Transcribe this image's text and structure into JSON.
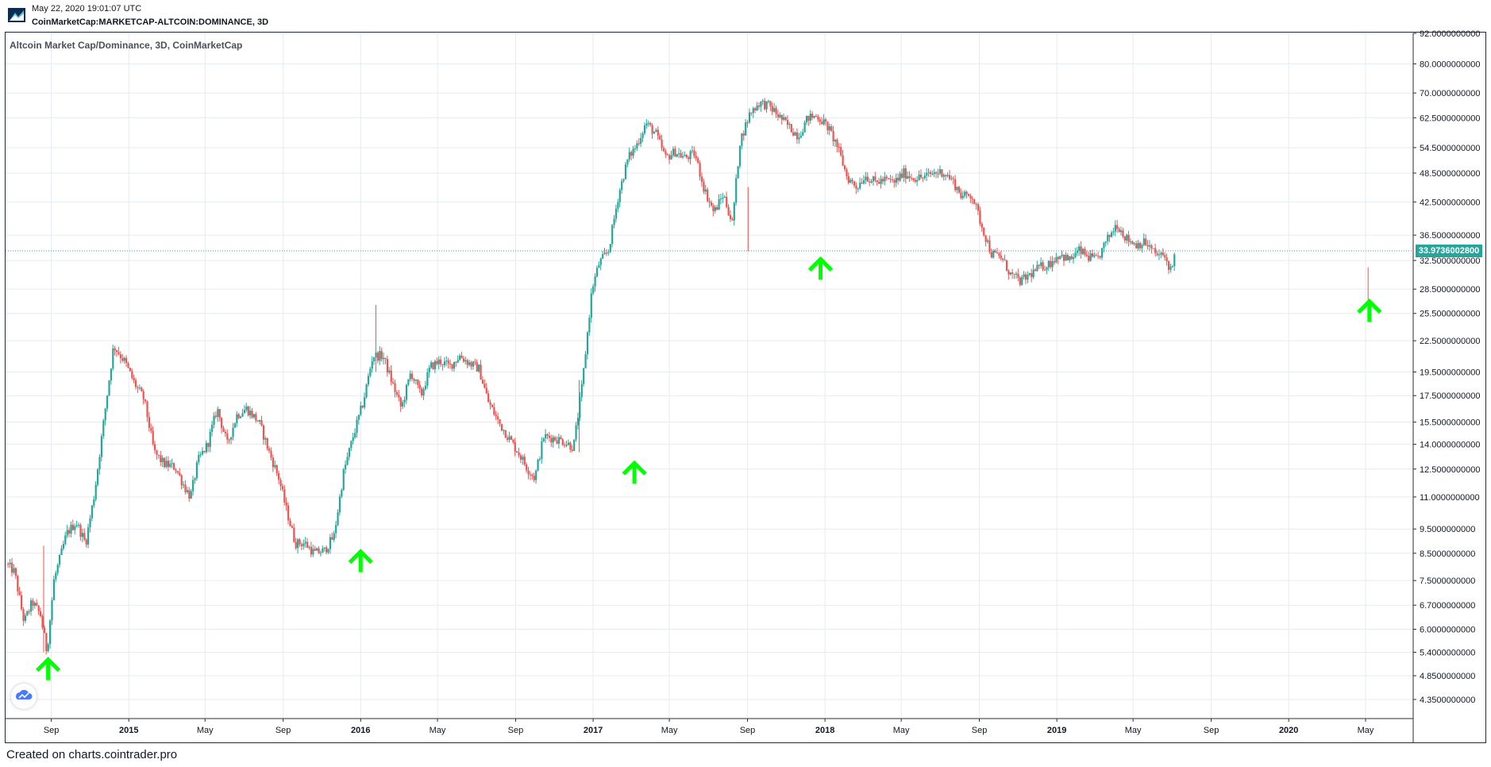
{
  "header": {
    "datetime": "May 22, 2020 19:01:07 UTC",
    "symbol": "CoinMarketCap:MARKETCAP-ALTCOIN:DOMINANCE, 3D"
  },
  "footer": {
    "text": "Created on charts.cointrader.pro"
  },
  "colors": {
    "up": "#26a69a",
    "down": "#ef5350",
    "arrow": "#00ff00",
    "grid": "#e6ebf1",
    "axis_text": "#131722",
    "price_line": "#26a69a"
  },
  "icons": {
    "logo": "cointrader-logo-icon",
    "brand": "tradingview-cloud-icon",
    "marker": "up-arrow-icon"
  },
  "chart_data": {
    "type": "candlestick",
    "title": "Altcoin Market Cap/Dominance, 3D, CoinMarketCap",
    "y_scale": "log",
    "ylim": [
      4.0,
      92.0
    ],
    "xlim": [
      "2014-06-21",
      "2020-07-15"
    ],
    "last_price_label": "33.9736002800",
    "last_price": 33.9736,
    "y_ticks": [
      {
        "label": "92.0000000000",
        "v": 92.0
      },
      {
        "label": "80.0000000000",
        "v": 80.0
      },
      {
        "label": "70.0000000000",
        "v": 70.0
      },
      {
        "label": "62.5000000000",
        "v": 62.5
      },
      {
        "label": "54.5000000000",
        "v": 54.5
      },
      {
        "label": "48.5000000000",
        "v": 48.5
      },
      {
        "label": "42.5000000000",
        "v": 42.5
      },
      {
        "label": "36.5000000000",
        "v": 36.5
      },
      {
        "label": "32.5000000000",
        "v": 32.5
      },
      {
        "label": "28.5000000000",
        "v": 28.5
      },
      {
        "label": "25.5000000000",
        "v": 25.5
      },
      {
        "label": "22.5000000000",
        "v": 22.5
      },
      {
        "label": "19.5000000000",
        "v": 19.5
      },
      {
        "label": "17.5000000000",
        "v": 17.5
      },
      {
        "label": "15.5000000000",
        "v": 15.5
      },
      {
        "label": "14.0000000000",
        "v": 14.0
      },
      {
        "label": "12.5000000000",
        "v": 12.5
      },
      {
        "label": "11.0000000000",
        "v": 11.0
      },
      {
        "label": "9.5000000000",
        "v": 9.5
      },
      {
        "label": "8.5000000000",
        "v": 8.5
      },
      {
        "label": "7.5000000000",
        "v": 7.5
      },
      {
        "label": "6.7000000000",
        "v": 6.7
      },
      {
        "label": "6.0000000000",
        "v": 6.0
      },
      {
        "label": "5.4000000000",
        "v": 5.4
      },
      {
        "label": "4.8500000000",
        "v": 4.85
      },
      {
        "label": "4.3500000000",
        "v": 4.35
      }
    ],
    "x_ticks": [
      {
        "label": "Sep",
        "date": "2014-09-01",
        "bold": false
      },
      {
        "label": "2015",
        "date": "2015-01-01",
        "bold": true
      },
      {
        "label": "May",
        "date": "2015-05-01",
        "bold": false
      },
      {
        "label": "Sep",
        "date": "2015-09-01",
        "bold": false
      },
      {
        "label": "2016",
        "date": "2016-01-01",
        "bold": true
      },
      {
        "label": "May",
        "date": "2016-05-01",
        "bold": false
      },
      {
        "label": "Sep",
        "date": "2016-09-01",
        "bold": false
      },
      {
        "label": "2017",
        "date": "2017-01-01",
        "bold": true
      },
      {
        "label": "May",
        "date": "2017-05-01",
        "bold": false
      },
      {
        "label": "Sep",
        "date": "2017-09-01",
        "bold": false
      },
      {
        "label": "2018",
        "date": "2018-01-01",
        "bold": true
      },
      {
        "label": "May",
        "date": "2018-05-01",
        "bold": false
      },
      {
        "label": "Sep",
        "date": "2018-09-01",
        "bold": false
      },
      {
        "label": "2019",
        "date": "2019-01-01",
        "bold": true
      },
      {
        "label": "May",
        "date": "2019-05-01",
        "bold": false
      },
      {
        "label": "Sep",
        "date": "2019-09-01",
        "bold": false
      },
      {
        "label": "2020",
        "date": "2020-01-01",
        "bold": true
      },
      {
        "label": "May",
        "date": "2020-05-01",
        "bold": false
      }
    ],
    "price_path": [
      [
        "2014-06-22",
        8.1
      ],
      [
        "2014-07-05",
        7.8
      ],
      [
        "2014-07-20",
        6.2
      ],
      [
        "2014-08-02",
        6.8
      ],
      [
        "2014-08-15",
        6.4
      ],
      [
        "2014-08-25",
        5.4
      ],
      [
        "2014-09-05",
        7.5
      ],
      [
        "2014-09-25",
        9.3
      ],
      [
        "2014-10-10",
        9.8
      ],
      [
        "2014-10-25",
        8.9
      ],
      [
        "2014-11-08",
        11.2
      ],
      [
        "2014-11-25",
        16.5
      ],
      [
        "2014-12-08",
        22.0
      ],
      [
        "2014-12-25",
        20.5
      ],
      [
        "2015-01-10",
        18.5
      ],
      [
        "2015-01-25",
        17.2
      ],
      [
        "2015-02-10",
        13.5
      ],
      [
        "2015-02-25",
        12.8
      ],
      [
        "2015-03-15",
        12.6
      ],
      [
        "2015-03-30",
        11.5
      ],
      [
        "2015-04-08",
        11.0
      ],
      [
        "2015-04-20",
        13.0
      ],
      [
        "2015-05-05",
        14.0
      ],
      [
        "2015-05-20",
        16.5
      ],
      [
        "2015-06-05",
        14.0
      ],
      [
        "2015-06-20",
        16.0
      ],
      [
        "2015-07-05",
        16.5
      ],
      [
        "2015-07-25",
        15.5
      ],
      [
        "2015-08-10",
        13.5
      ],
      [
        "2015-08-25",
        12.0
      ],
      [
        "2015-09-05",
        10.5
      ],
      [
        "2015-09-20",
        8.9
      ],
      [
        "2015-10-05",
        8.9
      ],
      [
        "2015-10-20",
        8.5
      ],
      [
        "2015-11-05",
        8.6
      ],
      [
        "2015-11-20",
        9.2
      ],
      [
        "2015-12-05",
        12.3
      ],
      [
        "2015-12-20",
        14.5
      ],
      [
        "2016-01-05",
        17.0
      ],
      [
        "2016-01-20",
        21.0
      ],
      [
        "2016-02-05",
        21.0
      ],
      [
        "2016-02-20",
        18.5
      ],
      [
        "2016-03-05",
        16.5
      ],
      [
        "2016-03-20",
        19.5
      ],
      [
        "2016-04-05",
        17.5
      ],
      [
        "2016-04-20",
        20.0
      ],
      [
        "2016-05-05",
        20.5
      ],
      [
        "2016-05-20",
        20.0
      ],
      [
        "2016-06-05",
        21.0
      ],
      [
        "2016-06-20",
        20.3
      ],
      [
        "2016-07-05",
        19.8
      ],
      [
        "2016-07-20",
        17.0
      ],
      [
        "2016-08-05",
        15.5
      ],
      [
        "2016-08-20",
        14.5
      ],
      [
        "2016-09-05",
        13.5
      ],
      [
        "2016-09-20",
        12.5
      ],
      [
        "2016-10-01",
        12.0
      ],
      [
        "2016-10-15",
        14.5
      ],
      [
        "2016-11-01",
        14.4
      ],
      [
        "2016-11-15",
        14.2
      ],
      [
        "2016-12-01",
        13.8
      ],
      [
        "2016-12-15",
        18.5
      ],
      [
        "2016-12-30",
        28.5
      ],
      [
        "2017-01-10",
        32.0
      ],
      [
        "2017-01-25",
        34.0
      ],
      [
        "2017-02-10",
        44.0
      ],
      [
        "2017-02-25",
        52.0
      ],
      [
        "2017-03-10",
        55.0
      ],
      [
        "2017-03-25",
        61.0
      ],
      [
        "2017-04-10",
        58.0
      ],
      [
        "2017-04-25",
        52.0
      ],
      [
        "2017-05-10",
        53.5
      ],
      [
        "2017-05-25",
        52.0
      ],
      [
        "2017-06-10",
        53.0
      ],
      [
        "2017-06-25",
        45.0
      ],
      [
        "2017-07-10",
        40.5
      ],
      [
        "2017-07-25",
        44.0
      ],
      [
        "2017-08-08",
        38.5
      ],
      [
        "2017-08-20",
        56.0
      ],
      [
        "2017-09-05",
        64.0
      ],
      [
        "2017-09-20",
        67.0
      ],
      [
        "2017-10-05",
        66.0
      ],
      [
        "2017-10-20",
        63.0
      ],
      [
        "2017-11-05",
        60.0
      ],
      [
        "2017-11-20",
        57.5
      ],
      [
        "2017-12-05",
        62.5
      ],
      [
        "2017-12-20",
        63.0
      ],
      [
        "2018-01-05",
        60.0
      ],
      [
        "2018-01-20",
        55.0
      ],
      [
        "2018-02-05",
        47.5
      ],
      [
        "2018-02-20",
        45.5
      ],
      [
        "2018-03-05",
        48.0
      ],
      [
        "2018-03-20",
        46.5
      ],
      [
        "2018-04-05",
        47.0
      ],
      [
        "2018-04-20",
        46.5
      ],
      [
        "2018-05-05",
        48.5
      ],
      [
        "2018-05-20",
        47.5
      ],
      [
        "2018-06-05",
        47.5
      ],
      [
        "2018-06-20",
        48.5
      ],
      [
        "2018-07-05",
        48.8
      ],
      [
        "2018-07-20",
        47.0
      ],
      [
        "2018-08-05",
        43.5
      ],
      [
        "2018-08-20",
        44.0
      ],
      [
        "2018-09-05",
        38.0
      ],
      [
        "2018-09-20",
        33.5
      ],
      [
        "2018-10-05",
        33.0
      ],
      [
        "2018-10-20",
        30.5
      ],
      [
        "2018-11-05",
        29.5
      ],
      [
        "2018-11-20",
        30.5
      ],
      [
        "2018-12-05",
        31.5
      ],
      [
        "2018-12-20",
        32.0
      ],
      [
        "2019-01-05",
        33.5
      ],
      [
        "2019-01-20",
        32.5
      ],
      [
        "2019-02-05",
        34.0
      ],
      [
        "2019-02-20",
        33.0
      ],
      [
        "2019-03-05",
        32.5
      ],
      [
        "2019-03-20",
        35.5
      ],
      [
        "2019-04-05",
        38.5
      ],
      [
        "2019-04-20",
        36.0
      ],
      [
        "2019-05-05",
        35.0
      ],
      [
        "2019-05-20",
        35.3
      ],
      [
        "2019-06-05",
        33.5
      ],
      [
        "2019-06-20",
        33.0
      ],
      [
        "2019-07-01",
        30.8
      ],
      [
        "2019-07-05",
        33.97
      ]
    ],
    "wick_events": [
      {
        "date": "2014-08-20",
        "high": 8.8,
        "low": 5.4
      },
      {
        "date": "2016-01-25",
        "high": 26.5,
        "low": 19.5
      },
      {
        "date": "2016-12-10",
        "high": 18.8,
        "low": 13.5
      },
      {
        "date": "2017-09-02",
        "high": 45.5,
        "low": 33.9
      },
      {
        "date": "2020-05-05",
        "high": 31.5,
        "low": 26.5
      }
    ],
    "arrow_markers": [
      {
        "date": "2014-08-27",
        "value": 5.0
      },
      {
        "date": "2016-01-01",
        "value": 8.2
      },
      {
        "date": "2017-03-07",
        "value": 12.3
      },
      {
        "date": "2017-12-25",
        "value": 31.3
      },
      {
        "date": "2020-05-07",
        "value": 25.8
      }
    ]
  }
}
